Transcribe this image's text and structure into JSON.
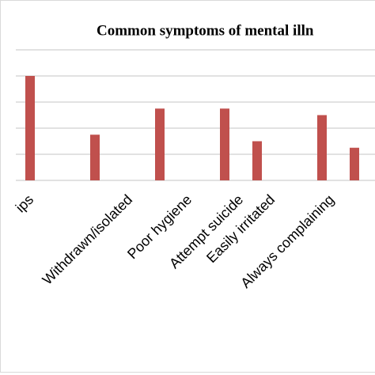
{
  "chart_data": {
    "type": "bar",
    "title": "Common symptoms of mental illn",
    "categories": [
      "ips",
      null,
      null,
      "Withdrawn/isolated",
      null,
      "Poor hygiene",
      "Attempt suicide",
      "Easily irritated",
      null,
      "Always complaining",
      null
    ],
    "values": [
      4,
      0,
      1.75,
      0,
      2.75,
      0,
      2.75,
      1.5,
      0,
      2.5,
      1.25
    ],
    "color": "#c0504d",
    "ylim": [
      0,
      5
    ],
    "yticks": [
      0,
      1,
      2,
      3,
      4,
      5
    ],
    "grid": true
  }
}
